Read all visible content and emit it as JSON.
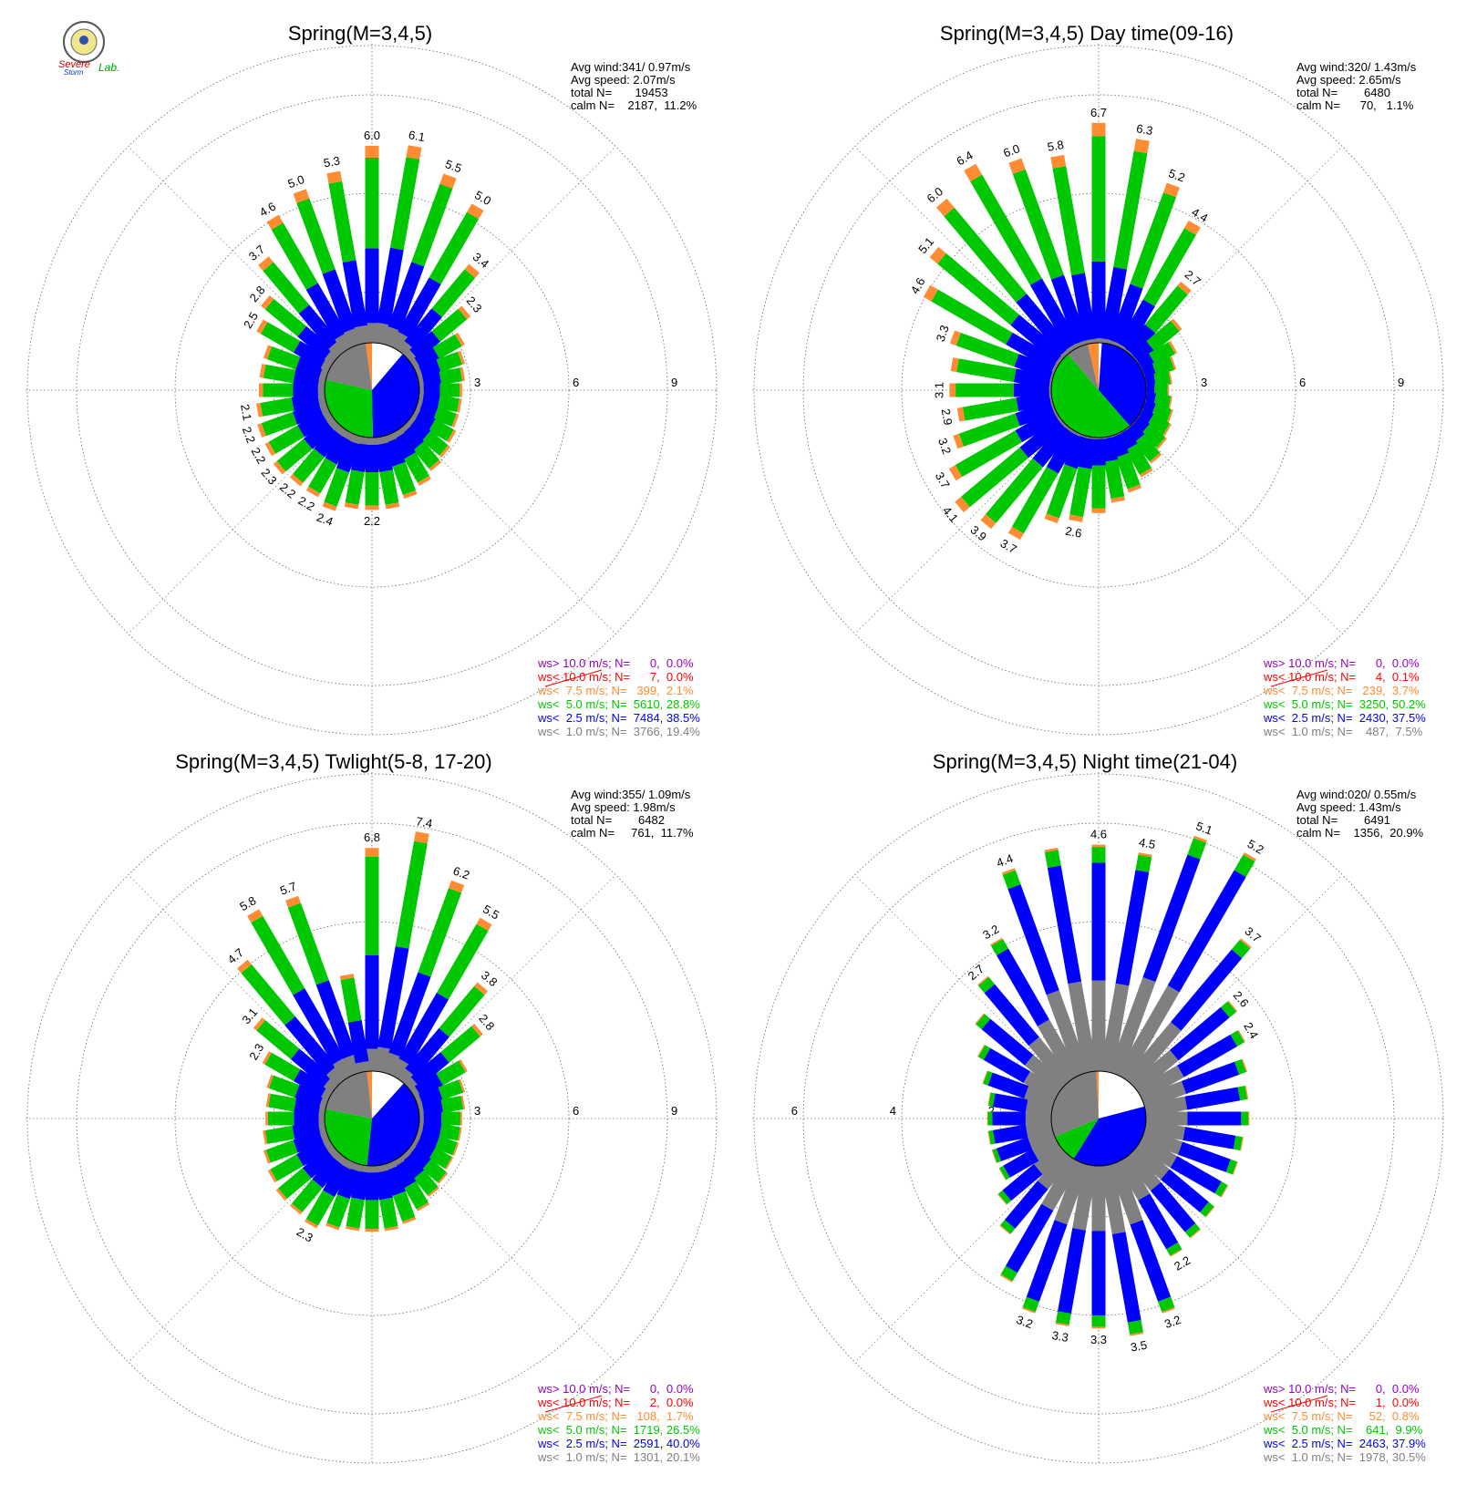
{
  "logo": {
    "text_top": "Severe",
    "text_bottom": "Storm",
    "suffix": "Lab."
  },
  "colors": {
    "calm": "#ffffff",
    "ws_lt_1": "#808080",
    "ws_lt_2_5": "#0000ff",
    "ws_lt_5": "#00c800",
    "ws_lt_7_5": "#ff8c32",
    "ws_lt_10": "#ff0000",
    "ws_gt_10": "#9600c8",
    "grid": "#666666",
    "text": "#000000"
  },
  "chart_data": [
    {
      "type": "windrose",
      "title": "Spring(M=3,4,5)",
      "stats": [
        "Avg wind:341/ 0.97m/s",
        "Avg speed: 2.07m/s",
        "total N=       19453",
        "calm N=    2187,  11.2%"
      ],
      "ring_labels": [
        "3",
        "6",
        "9"
      ],
      "legend": [
        "ws> 10.0 m/s; N=      0,  0.0%",
        "ws< 10.0 m/s; N=      7,  0.0%",
        "ws<  7.5 m/s; N=   399,  2.1%",
        "ws<  5.0 m/s; N=  5610, 28.8%",
        "ws<  2.5 m/s; N=  7484, 38.5%",
        "ws<  1.0 m/s; N=  3766, 19.4%"
      ],
      "rmax": 10,
      "pie": [
        0.112,
        0.385,
        0.288,
        0.194,
        0.021
      ],
      "dirs": [
        0,
        10,
        20,
        30,
        40,
        50,
        60,
        70,
        80,
        90,
        100,
        110,
        120,
        130,
        140,
        150,
        160,
        170,
        180,
        190,
        200,
        210,
        220,
        230,
        240,
        250,
        260,
        270,
        280,
        290,
        300,
        310,
        320,
        330,
        340,
        350
      ],
      "totals": [
        6.0,
        6.1,
        5.5,
        5.0,
        3.4,
        2.3,
        1.7,
        1.5,
        1.4,
        1.3,
        1.3,
        1.3,
        1.4,
        1.5,
        1.6,
        1.8,
        2.0,
        2.2,
        2.2,
        2.2,
        2.4,
        2.2,
        2.2,
        2.3,
        2.2,
        2.2,
        2.1,
        2.0,
        2.0,
        2.0,
        2.5,
        2.8,
        3.7,
        4.6,
        5.0,
        5.3
      ],
      "labeled": [
        6.0,
        6.1,
        5.5,
        5.0,
        3.4,
        2.3,
        null,
        null,
        null,
        null,
        null,
        null,
        null,
        null,
        null,
        null,
        null,
        null,
        2.2,
        null,
        2.4,
        2.2,
        2.2,
        2.3,
        2.2,
        2.2,
        2.1,
        null,
        null,
        null,
        2.5,
        2.8,
        3.7,
        4.6,
        5.0,
        5.3
      ],
      "label_texts": [
        "6.0",
        "6.1",
        "5.5",
        "5.0",
        "3.4",
        "2.3",
        "",
        "",
        "",
        "",
        "",
        "",
        "",
        "",
        "",
        "",
        "",
        "",
        "2.2",
        "",
        "2.4",
        "2.2",
        "2.2",
        "2.3",
        "2.2",
        "2.2",
        "2.1",
        "",
        "",
        "",
        "2.5",
        "2.8",
        "3.7",
        "4.6",
        "5.0",
        "5.3"
      ],
      "fractions": [
        0.1,
        0.38,
        0.46,
        0.06
      ]
    },
    {
      "type": "windrose",
      "title": "Spring(M=3,4,5) Day time(09-16)",
      "stats": [
        "Avg wind:320/ 1.43m/s",
        "Avg speed: 2.65m/s",
        "total N=        6480",
        "calm N=      70,   1.1%"
      ],
      "ring_labels": [
        "3",
        "6",
        "9"
      ],
      "legend": [
        "ws> 10.0 m/s; N=      0,  0.0%",
        "ws< 10.0 m/s; N=      4,  0.1%",
        "ws<  7.5 m/s; N=   239,  3.7%",
        "ws<  5.0 m/s; N=  3250, 50.2%",
        "ws<  2.5 m/s; N=  2430, 37.5%",
        "ws<  1.0 m/s; N=    487,  7.5%"
      ],
      "rmax": 10,
      "pie": [
        0.011,
        0.375,
        0.502,
        0.075,
        0.037
      ],
      "dirs": [
        0,
        10,
        20,
        30,
        40,
        50,
        60,
        70,
        80,
        90,
        100,
        110,
        120,
        130,
        140,
        150,
        160,
        170,
        180,
        190,
        200,
        210,
        220,
        230,
        240,
        250,
        260,
        270,
        280,
        290,
        300,
        310,
        320,
        330,
        340,
        350
      ],
      "totals": [
        6.7,
        6.3,
        5.2,
        4.4,
        2.7,
        1.7,
        1.2,
        1.0,
        0.8,
        0.7,
        0.8,
        0.9,
        1.0,
        1.1,
        1.3,
        1.5,
        1.8,
        2.0,
        2.3,
        2.6,
        2.8,
        3.7,
        3.9,
        4.1,
        3.7,
        3.2,
        2.9,
        3.1,
        3.1,
        3.3,
        4.6,
        5.1,
        6.0,
        6.4,
        6.0,
        5.8
      ],
      "labeled": [
        6.7,
        6.3,
        5.2,
        4.4,
        2.7,
        null,
        null,
        null,
        null,
        null,
        null,
        null,
        null,
        null,
        null,
        null,
        null,
        null,
        null,
        2.6,
        null,
        3.7,
        3.9,
        4.1,
        3.7,
        3.2,
        2.9,
        3.1,
        null,
        3.3,
        4.6,
        5.1,
        6.0,
        6.4,
        6.0,
        5.8
      ],
      "label_texts": [
        "6.7",
        "6.3",
        "5.2",
        "4.4",
        "2.7",
        "",
        "",
        "",
        "",
        "",
        "",
        "",
        "",
        "",
        "",
        "",
        "",
        "",
        "",
        "2.6",
        "",
        "3.7",
        "3.9",
        "4.1",
        "3.7",
        "3.2",
        "2.9",
        "3.1",
        "",
        "3.3",
        "4.6",
        "5.1",
        "6.0",
        "6.4",
        "6.0",
        "5.8"
      ],
      "fractions": [
        0.02,
        0.35,
        0.57,
        0.06
      ]
    },
    {
      "type": "windrose",
      "title": "Spring(M=3,4,5) Twlight(5-8, 17-20)",
      "stats": [
        "Avg wind:355/ 1.09m/s",
        "Avg speed: 1.98m/s",
        "total N=        6482",
        "calm N=     761,  11.7%"
      ],
      "ring_labels": [
        "3",
        "6",
        "9"
      ],
      "legend": [
        "ws> 10.0 m/s; N=      0,  0.0%",
        "ws< 10.0 m/s; N=      2,  0.0%",
        "ws<  7.5 m/s; N=   108,  1.7%",
        "ws<  5.0 m/s; N=  1719, 26.5%",
        "ws<  2.5 m/s; N=  2591, 40.0%",
        "ws<  1.0 m/s; N=  1301, 20.1%"
      ],
      "rmax": 10,
      "pie": [
        0.117,
        0.4,
        0.265,
        0.201,
        0.017
      ],
      "dirs": [
        0,
        10,
        20,
        30,
        40,
        50,
        60,
        70,
        80,
        90,
        100,
        110,
        120,
        130,
        140,
        150,
        160,
        170,
        180,
        190,
        200,
        210,
        220,
        230,
        240,
        250,
        260,
        270,
        280,
        290,
        300,
        310,
        320,
        330,
        340,
        350
      ],
      "totals": [
        6.8,
        7.4,
        6.2,
        5.5,
        3.8,
        2.8,
        1.8,
        1.5,
        1.4,
        1.3,
        1.3,
        1.3,
        1.3,
        1.4,
        1.5,
        1.7,
        1.9,
        2.0,
        2.0,
        2.0,
        2.1,
        2.3,
        2.2,
        2.2,
        2.1,
        2.0,
        1.9,
        1.8,
        1.8,
        1.9,
        2.3,
        3.1,
        4.7,
        5.8,
        5.7,
        3.0
      ],
      "labeled": [
        6.8,
        7.4,
        6.2,
        5.5,
        3.8,
        2.8,
        null,
        null,
        null,
        null,
        null,
        null,
        null,
        null,
        null,
        null,
        null,
        null,
        null,
        null,
        null,
        2.3,
        null,
        null,
        null,
        null,
        null,
        null,
        null,
        null,
        2.3,
        3.1,
        4.7,
        5.8,
        5.7,
        null
      ],
      "label_texts": [
        "6.8",
        "7.4",
        "6.2",
        "5.5",
        "3.8",
        "2.8",
        "",
        "",
        "",
        "",
        "",
        "",
        "",
        "",
        "",
        "",
        "",
        "",
        "",
        "",
        "",
        "2.3",
        "",
        "",
        "",
        "",
        "",
        "",
        "",
        "",
        "2.3",
        "3.1",
        "4.7",
        "5.8",
        "5.7",
        ""
      ],
      "fractions": [
        0.1,
        0.42,
        0.44,
        0.04
      ]
    },
    {
      "type": "windrose",
      "title": "Spring(M=3,4,5) Night time(21-04)",
      "stats": [
        "Avg wind:020/ 0.55m/s",
        "Avg speed: 1.43m/s",
        "total N=        6491",
        "calm N=    1356,  20.9%"
      ],
      "ring_labels": [
        "2",
        "4",
        "6"
      ],
      "legend": [
        "ws> 10.0 m/s; N=      0,  0.0%",
        "ws< 10.0 m/s; N=      1,  0.0%",
        "ws<  7.5 m/s; N=     52,  0.8%",
        "ws<  5.0 m/s; N=    641,  9.9%",
        "ws<  2.5 m/s; N=  2463, 37.9%",
        "ws<  1.0 m/s; N=  1978, 30.5%"
      ],
      "rmax": 6.67,
      "pie": [
        0.209,
        0.379,
        0.099,
        0.305,
        0.008
      ],
      "dirs": [
        0,
        10,
        20,
        30,
        40,
        50,
        60,
        70,
        80,
        90,
        100,
        110,
        120,
        130,
        140,
        150,
        160,
        170,
        180,
        190,
        200,
        210,
        220,
        230,
        240,
        250,
        260,
        270,
        280,
        290,
        300,
        310,
        320,
        330,
        340,
        350
      ],
      "totals": [
        4.6,
        4.5,
        5.1,
        5.2,
        3.7,
        2.6,
        2.4,
        2.2,
        2.1,
        2.1,
        2.0,
        2.0,
        2.0,
        2.0,
        2.1,
        2.2,
        3.2,
        3.5,
        3.3,
        3.3,
        3.2,
        2.8,
        2.0,
        1.6,
        1.3,
        1.3,
        1.3,
        1.3,
        1.3,
        1.5,
        1.8,
        2.2,
        2.7,
        3.2,
        4.4,
        4.6
      ],
      "labeled": [
        4.6,
        4.5,
        5.1,
        5.2,
        3.7,
        2.6,
        2.4,
        null,
        null,
        null,
        null,
        null,
        null,
        null,
        null,
        2.2,
        3.2,
        3.5,
        3.3,
        3.3,
        3.2,
        null,
        null,
        null,
        null,
        null,
        null,
        null,
        null,
        null,
        null,
        null,
        2.7,
        3.2,
        4.4,
        null
      ],
      "label_texts": [
        "4.6",
        "4.5",
        "5.1",
        "5.2",
        "3.7",
        "2.6",
        "2.4",
        "",
        "",
        "",
        "",
        "",
        "",
        "",
        "",
        "2.2",
        "3.2",
        "3.5",
        "3.3",
        "3.3",
        "3.2",
        "",
        "",
        "",
        "",
        "",
        "",
        "",
        "",
        "",
        "",
        "",
        "2.7",
        "3.2",
        "4.4",
        ""
      ],
      "fractions": [
        0.4,
        0.52,
        0.07,
        0.01
      ]
    }
  ]
}
